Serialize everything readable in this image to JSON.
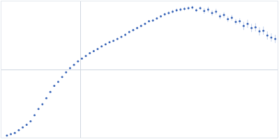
{
  "chart_data": {
    "type": "scatter",
    "marker": "circle",
    "color": "#3a66b8",
    "grid": true,
    "tick_labels": false,
    "xlim": [
      0,
      0.35
    ],
    "ylim": [
      0,
      2
    ],
    "xticks": [
      0.1
    ],
    "yticks": [
      1
    ],
    "x": [
      0.007,
      0.012,
      0.017,
      0.022,
      0.027,
      0.032,
      0.037,
      0.042,
      0.047,
      0.052,
      0.057,
      0.062,
      0.067,
      0.072,
      0.077,
      0.082,
      0.087,
      0.092,
      0.097,
      0.102,
      0.107,
      0.112,
      0.117,
      0.122,
      0.127,
      0.132,
      0.137,
      0.142,
      0.147,
      0.152,
      0.157,
      0.162,
      0.167,
      0.172,
      0.177,
      0.182,
      0.187,
      0.192,
      0.197,
      0.202,
      0.207,
      0.212,
      0.217,
      0.222,
      0.227,
      0.232,
      0.237,
      0.242,
      0.247,
      0.252,
      0.257,
      0.262,
      0.267,
      0.272,
      0.277,
      0.282,
      0.287,
      0.292,
      0.297,
      0.302,
      0.307,
      0.312,
      0.317,
      0.322,
      0.327,
      0.332,
      0.337,
      0.342,
      0.347
    ],
    "values": [
      0.03,
      0.05,
      0.07,
      0.11,
      0.15,
      0.19,
      0.24,
      0.33,
      0.42,
      0.49,
      0.58,
      0.67,
      0.76,
      0.82,
      0.89,
      0.96,
      1.02,
      1.07,
      1.12,
      1.16,
      1.2,
      1.24,
      1.27,
      1.3,
      1.34,
      1.37,
      1.4,
      1.42,
      1.45,
      1.48,
      1.51,
      1.55,
      1.58,
      1.61,
      1.64,
      1.67,
      1.71,
      1.72,
      1.75,
      1.78,
      1.81,
      1.83,
      1.85,
      1.87,
      1.88,
      1.89,
      1.9,
      1.91,
      1.87,
      1.9,
      1.86,
      1.88,
      1.83,
      1.85,
      1.78,
      1.8,
      1.74,
      1.76,
      1.7,
      1.71,
      1.64,
      1.67,
      1.61,
      1.62,
      1.56,
      1.57,
      1.5,
      1.47,
      1.45
    ],
    "errors": [
      0.005,
      0.005,
      0.005,
      0.005,
      0.005,
      0.005,
      0.005,
      0.005,
      0.005,
      0.005,
      0.008,
      0.008,
      0.008,
      0.008,
      0.008,
      0.008,
      0.008,
      0.008,
      0.008,
      0.008,
      0.012,
      0.012,
      0.012,
      0.012,
      0.012,
      0.012,
      0.012,
      0.012,
      0.012,
      0.012,
      0.018,
      0.018,
      0.018,
      0.018,
      0.018,
      0.018,
      0.018,
      0.018,
      0.018,
      0.018,
      0.025,
      0.025,
      0.025,
      0.025,
      0.025,
      0.025,
      0.025,
      0.025,
      0.025,
      0.025,
      0.04,
      0.04,
      0.04,
      0.04,
      0.04,
      0.04,
      0.04,
      0.04,
      0.04,
      0.04,
      0.06,
      0.06,
      0.06,
      0.06,
      0.06,
      0.06,
      0.06,
      0.06,
      0.06
    ]
  }
}
